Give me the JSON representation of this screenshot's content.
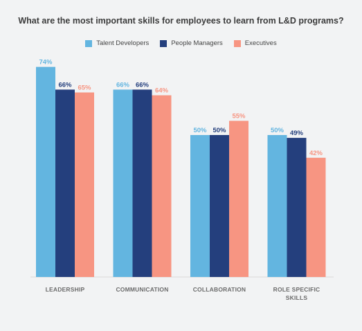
{
  "chart_data": {
    "type": "bar",
    "title": "What are the most important skills for employees to learn from L&D programs?",
    "categories": [
      [
        "LEADERSHIP"
      ],
      [
        "COMMUNICATION"
      ],
      [
        "COLLABORATION"
      ],
      [
        "ROLE SPECIFIC",
        "SKILLS"
      ]
    ],
    "series": [
      {
        "name": "Talent Developers",
        "values": [
          74,
          66,
          50,
          50
        ],
        "labels": [
          "74%",
          "66%",
          "50%",
          "50%"
        ],
        "color": "#63b5e0"
      },
      {
        "name": "People Managers",
        "values": [
          66,
          66,
          50,
          49
        ],
        "labels": [
          "66%",
          "66%",
          "50%",
          "49%"
        ],
        "color": "#243f7d"
      },
      {
        "name": "Executives",
        "values": [
          65,
          64,
          55,
          42
        ],
        "labels": [
          "65%",
          "64%",
          "55%",
          "42%"
        ],
        "color": "#f79582"
      }
    ],
    "ylim": [
      0,
      100
    ],
    "grid": false,
    "legend_position": "top"
  }
}
